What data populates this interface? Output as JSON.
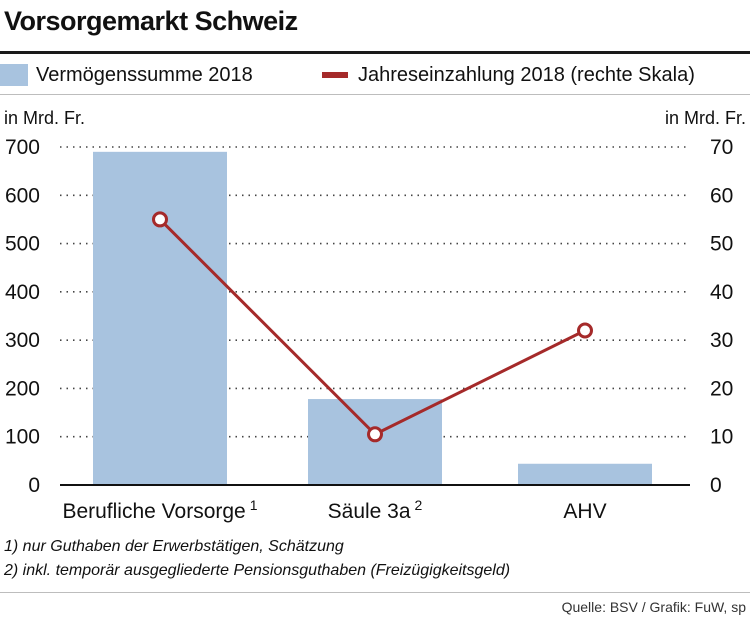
{
  "title": "Vorsorgemarkt Schweiz",
  "legend": {
    "bars_label": "Vermögenssumme 2018",
    "line_label": "Jahreseinzahlung 2018 (rechte Skala)"
  },
  "footnotes": [
    "1) nur Guthaben der Erwerbstätigen, Schätzung",
    "2) inkl. temporär ausgegliederte Pensionsguthaben (Freizügigkeitsgeld)"
  ],
  "source": "Quelle: BSV / Grafik: FuW, sp",
  "colors": {
    "bar": "#a8c3df",
    "line": "#a52a2a",
    "grid": "#444444"
  },
  "chart_data": {
    "type": "bar",
    "categories": [
      "Berufliche Vorsorge",
      "Säule 3a",
      "AHV"
    ],
    "category_footnote_marks": [
      "1",
      "2",
      ""
    ],
    "left_axis": {
      "unit_label": "in Mrd. Fr.",
      "ylim": [
        0,
        700
      ],
      "ticks": [
        0,
        100,
        200,
        300,
        400,
        500,
        600,
        700
      ]
    },
    "right_axis": {
      "unit_label": "in Mrd. Fr.",
      "ylim": [
        0,
        70
      ],
      "ticks": [
        0,
        10,
        20,
        30,
        40,
        50,
        60,
        70
      ]
    },
    "series": [
      {
        "name": "Vermögenssumme 2018",
        "type": "bar",
        "axis": "left",
        "values": [
          690,
          178,
          44
        ]
      },
      {
        "name": "Jahreseinzahlung 2018 (rechte Skala)",
        "type": "line",
        "axis": "right",
        "values": [
          55,
          10.5,
          32
        ]
      }
    ],
    "grid": "horizontal-dotted",
    "legend_position": "top"
  }
}
